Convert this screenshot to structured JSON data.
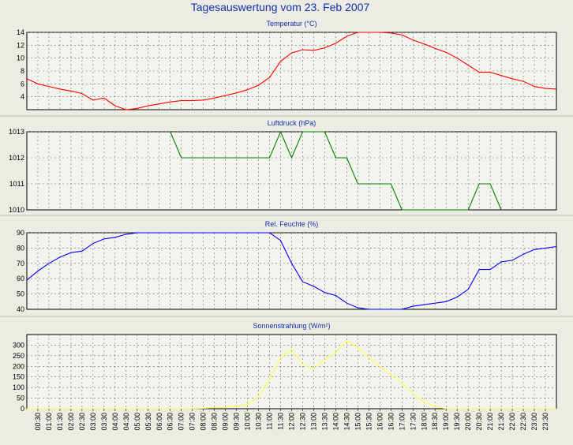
{
  "title": "Tagesauswertung vom 23. Feb 2007",
  "x_ticks": [
    "00:30",
    "01:00",
    "01:30",
    "02:00",
    "02:30",
    "03:00",
    "03:30",
    "04:00",
    "04:30",
    "05:00",
    "05:30",
    "06:00",
    "06:30",
    "07:00",
    "07:30",
    "08:00",
    "08:30",
    "09:00",
    "09:30",
    "10:00",
    "10:30",
    "11:00",
    "11:30",
    "12:00",
    "12:30",
    "13:00",
    "13:30",
    "14:00",
    "14:30",
    "15:00",
    "15:30",
    "16:00",
    "16:30",
    "17:00",
    "17:30",
    "18:00",
    "18:30",
    "19:00",
    "19:30",
    "20:00",
    "20:30",
    "21:00",
    "21:30",
    "22:00",
    "22:30",
    "23:00",
    "23:30"
  ],
  "chart_data": [
    {
      "type": "line",
      "title": "Temperatur (°C)",
      "color": "#ff0000",
      "ylim": [
        2,
        14
      ],
      "yticks": [
        4,
        6,
        8,
        10,
        12,
        14
      ],
      "grid": true,
      "x": [
        "00:00",
        "00:30",
        "01:00",
        "01:30",
        "02:00",
        "02:30",
        "03:00",
        "03:30",
        "04:00",
        "04:30",
        "05:00",
        "05:30",
        "06:00",
        "06:30",
        "07:00",
        "07:30",
        "08:00",
        "08:30",
        "09:00",
        "09:30",
        "10:00",
        "10:30",
        "11:00",
        "11:30",
        "12:00",
        "12:30",
        "13:00",
        "13:30",
        "14:00",
        "14:30",
        "15:00",
        "15:30",
        "16:00",
        "16:30",
        "17:00",
        "17:30",
        "18:00",
        "18:30",
        "19:00",
        "19:30",
        "20:00",
        "20:30",
        "21:00",
        "21:30",
        "22:00",
        "22:30",
        "23:00",
        "23:30",
        "24:00"
      ],
      "values": [
        6.8,
        6.0,
        5.6,
        5.2,
        4.9,
        4.5,
        3.5,
        3.8,
        2.6,
        2.0,
        2.2,
        2.6,
        2.9,
        3.2,
        3.4,
        3.4,
        3.5,
        3.8,
        4.2,
        4.6,
        5.1,
        5.8,
        7.0,
        9.5,
        10.8,
        11.3,
        11.2,
        11.6,
        12.3,
        13.4,
        14.0,
        14.0,
        14.0,
        13.9,
        13.6,
        12.8,
        12.2,
        11.5,
        10.9,
        10.0,
        8.9,
        7.8,
        7.8,
        7.3,
        6.8,
        6.4,
        5.6,
        5.3,
        5.2
      ]
    },
    {
      "type": "line",
      "title": "Luftdruck (hPa)",
      "color": "#008000",
      "ylim": [
        1010,
        1013
      ],
      "yticks": [
        1010,
        1011,
        1012,
        1013
      ],
      "grid": true,
      "x": [
        "06:30",
        "07:00",
        "08:00",
        "09:00",
        "10:00",
        "11:00",
        "11:30",
        "12:00",
        "12:30",
        "13:00",
        "13:30",
        "14:00",
        "14:30",
        "15:00",
        "16:00",
        "16:30",
        "17:00",
        "19:30",
        "20:00",
        "20:30",
        "21:00",
        "21:30"
      ],
      "values": [
        1013,
        1012,
        1012,
        1012,
        1012,
        1012,
        1013,
        1012,
        1013,
        1013,
        1013,
        1012,
        1012,
        1011,
        1011,
        1011,
        1010,
        1010,
        1010,
        1011,
        1011,
        1010
      ]
    },
    {
      "type": "line",
      "title": "Rel. Feuchte (%)",
      "color": "#0000ff",
      "ylim": [
        40,
        90
      ],
      "yticks": [
        40,
        50,
        60,
        70,
        80,
        90
      ],
      "grid": true,
      "x": [
        "00:00",
        "00:30",
        "01:00",
        "01:30",
        "02:00",
        "02:30",
        "03:00",
        "03:30",
        "04:00",
        "04:30",
        "05:00",
        "05:30",
        "06:00",
        "07:00",
        "07:30",
        "08:00",
        "08:30",
        "09:00",
        "09:30",
        "10:00",
        "10:30",
        "11:00",
        "11:30",
        "12:00",
        "12:30",
        "13:00",
        "13:30",
        "14:00",
        "14:30",
        "15:00",
        "15:30",
        "16:00",
        "16:30",
        "17:00",
        "17:30",
        "18:00",
        "18:30",
        "19:00",
        "19:30",
        "20:00",
        "20:30",
        "21:00",
        "21:30",
        "22:00",
        "22:30",
        "23:00",
        "23:30",
        "24:00"
      ],
      "values": [
        59,
        65,
        70,
        74,
        77,
        78,
        83,
        86,
        87,
        89,
        90,
        90,
        91,
        91,
        90,
        90,
        90,
        91,
        91,
        91,
        91,
        91,
        85,
        70,
        58,
        55,
        51,
        49,
        44,
        41,
        40,
        40,
        40,
        40,
        42,
        43,
        44,
        45,
        48,
        53,
        66,
        66,
        71,
        72,
        76,
        79,
        80,
        81
      ]
    },
    {
      "type": "line",
      "title": "Sonnenstrahlung (W/m²)",
      "color": "#ffff44",
      "ylim": [
        0,
        350
      ],
      "yticks": [
        0,
        50,
        100,
        150,
        200,
        250,
        300
      ],
      "grid": true,
      "x": [
        "00:00",
        "07:30",
        "08:00",
        "08:30",
        "09:00",
        "09:30",
        "10:00",
        "10:30",
        "11:00",
        "11:30",
        "12:00",
        "12:30",
        "13:00",
        "13:30",
        "14:00",
        "14:30",
        "15:00",
        "15:30",
        "16:00",
        "16:30",
        "17:00",
        "17:30",
        "18:00",
        "18:30",
        "19:00",
        "24:00"
      ],
      "values": [
        0,
        0,
        2,
        5,
        8,
        12,
        20,
        55,
        140,
        240,
        280,
        210,
        190,
        230,
        265,
        320,
        290,
        240,
        200,
        160,
        120,
        70,
        30,
        10,
        0,
        0
      ]
    }
  ]
}
